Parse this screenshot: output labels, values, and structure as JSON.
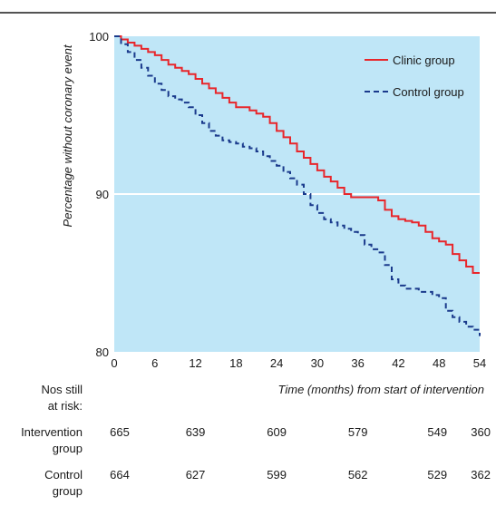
{
  "chart_data": {
    "type": "line",
    "xlabel": "Time (months) from start of intervention",
    "ylabel": "Percentage without coronary event",
    "xlim": [
      0,
      54
    ],
    "ylim": [
      80,
      100
    ],
    "x_ticks": [
      "0",
      "6",
      "12",
      "18",
      "24",
      "30",
      "36",
      "42",
      "48",
      "54"
    ],
    "y_ticks": [
      "80",
      "90",
      "100"
    ],
    "grid": "horizontal line at 90",
    "background_color": "#bfe6f7",
    "legend_position": "top-right",
    "series": [
      {
        "name": "Clinic group",
        "color": "#e8262b",
        "style": "solid step",
        "x": [
          0,
          1,
          2,
          3,
          4,
          5,
          6,
          7,
          8,
          9,
          10,
          11,
          12,
          13,
          14,
          15,
          16,
          17,
          18,
          19,
          20,
          21,
          22,
          23,
          24,
          25,
          26,
          27,
          28,
          29,
          30,
          31,
          32,
          33,
          34,
          35,
          36,
          37,
          38,
          39,
          40,
          41,
          42,
          43,
          44,
          45,
          46,
          47,
          48,
          49,
          50,
          51,
          52,
          53,
          54
        ],
        "values": [
          100,
          99.8,
          99.6,
          99.4,
          99.2,
          99.0,
          98.8,
          98.5,
          98.2,
          98.0,
          97.8,
          97.6,
          97.3,
          97.0,
          96.7,
          96.4,
          96.1,
          95.8,
          95.5,
          95.5,
          95.3,
          95.1,
          94.9,
          94.5,
          94.0,
          93.6,
          93.2,
          92.7,
          92.3,
          91.9,
          91.5,
          91.1,
          90.8,
          90.4,
          90.0,
          89.8,
          89.8,
          89.8,
          89.8,
          89.6,
          89.0,
          88.6,
          88.4,
          88.3,
          88.2,
          88.0,
          87.6,
          87.2,
          87.0,
          86.8,
          86.2,
          85.8,
          85.4,
          85.0,
          85.0
        ]
      },
      {
        "name": "Control group",
        "color": "#1a3a8c",
        "style": "dashed step",
        "x": [
          0,
          1,
          2,
          3,
          4,
          5,
          6,
          7,
          8,
          9,
          10,
          11,
          12,
          13,
          14,
          15,
          16,
          17,
          18,
          19,
          20,
          21,
          22,
          23,
          24,
          25,
          26,
          27,
          28,
          29,
          30,
          31,
          32,
          33,
          34,
          35,
          36,
          37,
          38,
          39,
          40,
          41,
          42,
          43,
          44,
          45,
          46,
          47,
          48,
          49,
          50,
          51,
          52,
          53,
          54
        ],
        "values": [
          100,
          99.5,
          99.0,
          98.5,
          98.0,
          97.5,
          97.0,
          96.6,
          96.2,
          96.0,
          95.8,
          95.5,
          95.0,
          94.5,
          94.0,
          93.7,
          93.4,
          93.3,
          93.2,
          93.0,
          92.9,
          92.7,
          92.4,
          92.1,
          91.8,
          91.4,
          91.0,
          90.6,
          90.0,
          89.3,
          88.8,
          88.4,
          88.2,
          88.0,
          87.8,
          87.6,
          87.4,
          86.8,
          86.5,
          86.3,
          85.5,
          84.6,
          84.2,
          84.0,
          84.0,
          83.8,
          83.8,
          83.6,
          83.4,
          82.6,
          82.2,
          81.9,
          81.6,
          81.4,
          81.0
        ]
      }
    ],
    "at_risk": {
      "header_line1": "Nos still",
      "header_line2": "at risk:",
      "rows": [
        {
          "label_line1": "Intervention",
          "label_line2": "group",
          "values": [
            "665",
            "639",
            "609",
            "579",
            "549",
            "360"
          ]
        },
        {
          "label_line1": "Control",
          "label_line2": "group",
          "values": [
            "664",
            "627",
            "599",
            "562",
            "529",
            "362"
          ]
        }
      ]
    }
  }
}
